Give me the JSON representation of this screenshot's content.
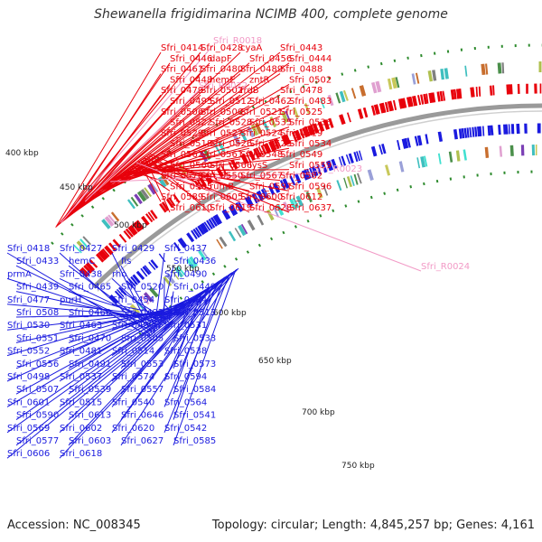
{
  "title": "Shewanella frigidimarina NCIMB 400, complete genome",
  "accession": "Accession: NC_008345",
  "summary": "Topology: circular; Length: 4,845,257 bp; Genes: 4,161",
  "colors": {
    "backbone": "#9a9a9a",
    "forward_gene": "#e8000b",
    "reverse_gene": "#1a1adf",
    "rna": "#f29ac6",
    "tick": "#2e8b2e"
  },
  "ticks": [
    "400 kbp",
    "450 kbp",
    "500 kbp",
    "550 kbp",
    "600 kbp",
    "650 kbp",
    "700 kbp",
    "750 kbp"
  ],
  "labels_red": [
    "Sfri_0414",
    "Sfri_0428",
    "cyaA",
    "Sfri_0443",
    "Sfri_0446",
    "dapF",
    "Sfri_0456",
    "Sfri_0444",
    "Sfri_0461",
    "Sfri_0480",
    "Sfri_0489",
    "Sfri_0488",
    "Sfri_0448",
    "hemE",
    "zntR",
    "Sfri_0502",
    "Sfri_0479",
    "Sfri_0501",
    "frdB",
    "Sfri_0478",
    "Sfri_0495",
    "Sfri_0512",
    "Sfri_0462",
    "Sfri_0483",
    "Sfri_0506",
    "Sfri_0500",
    "Sfri_0521",
    "Sfri_0525",
    "Sfri_0522",
    "Sfri_0528",
    "Sfri_0535",
    "Sfri_0536",
    "Sfri_0529",
    "Sfri_0527",
    "Sfri_0524",
    "Sfri_0519",
    "Sfri_0518",
    "Sfri_0526",
    "Sfri_0523",
    "Sfri_0534",
    "Sfri_0562",
    "Sfri_0561",
    "Sfri_0548",
    "Sfri_0549",
    "Sfri_0560",
    "Sfri_0566",
    "lysS",
    "Sfri_0559",
    "Sfri_0578",
    "Sfri_0550",
    "Sfri_0567",
    "Sfri_0582",
    "Sfri_0565",
    "rumB",
    "Sfri_0591",
    "Sfri_0596",
    "Sfri_0589",
    "Sfri_0605",
    "Sfri_0600",
    "Sfri_0612",
    "Sfri_0610",
    "Sfri_0619",
    "Sfri_0628",
    "Sfri_0637"
  ],
  "labels_pink": [
    "Sfri_R0018",
    "Sfri_R0022",
    "Sfri_R0023",
    "Sfri_R0024"
  ],
  "labels_blue": [
    "Sfri_0418",
    "Sfri_0427",
    "Sfri_0429",
    "Sfri_0437",
    "Sfri_0433",
    "hemC",
    "fis",
    "Sfri_0436",
    "prmA",
    "Sfri_0438",
    "rho",
    "Sfri_0490",
    "Sfri_0439",
    "Sfri_0465",
    "Sfri_0520",
    "Sfri_0449",
    "Sfri_0477",
    "purH",
    "Sfri_0454",
    "Sfri_0484",
    "Sfri_0508",
    "Sfri_0460",
    "Sfri_0492",
    "Sfri_0513",
    "Sfri_0530",
    "Sfri_0463",
    "Sfri_0497",
    "Sfri_0531",
    "Sfri_0551",
    "Sfri_0470",
    "Sfri_0505",
    "Sfri_0533",
    "Sfri_0552",
    "Sfri_0481",
    "Sfri_0514",
    "Sfri_0538",
    "Sfri_0556",
    "Sfri_0491",
    "Sfri_0553",
    "Sfri_0573",
    "Sfri_0498",
    "Sfri_0537",
    "Sfri_0574",
    "Sfri_0594",
    "Sfri_0507",
    "Sfri_0539",
    "Sfri_0557",
    "Sfri_0584",
    "Sfri_0601",
    "Sfri_0515",
    "Sfri_0540",
    "Sfri_0564",
    "Sfri_0590",
    "Sfri_0613",
    "Sfri_0646",
    "Sfri_0541",
    "Sfri_0569",
    "Sfri_0602",
    "Sfri_0620",
    "Sfri_0542",
    "Sfri_0577",
    "Sfri_0603",
    "Sfri_0627",
    "Sfri_0585",
    "Sfri_0606",
    "Sfri_0618"
  ]
}
